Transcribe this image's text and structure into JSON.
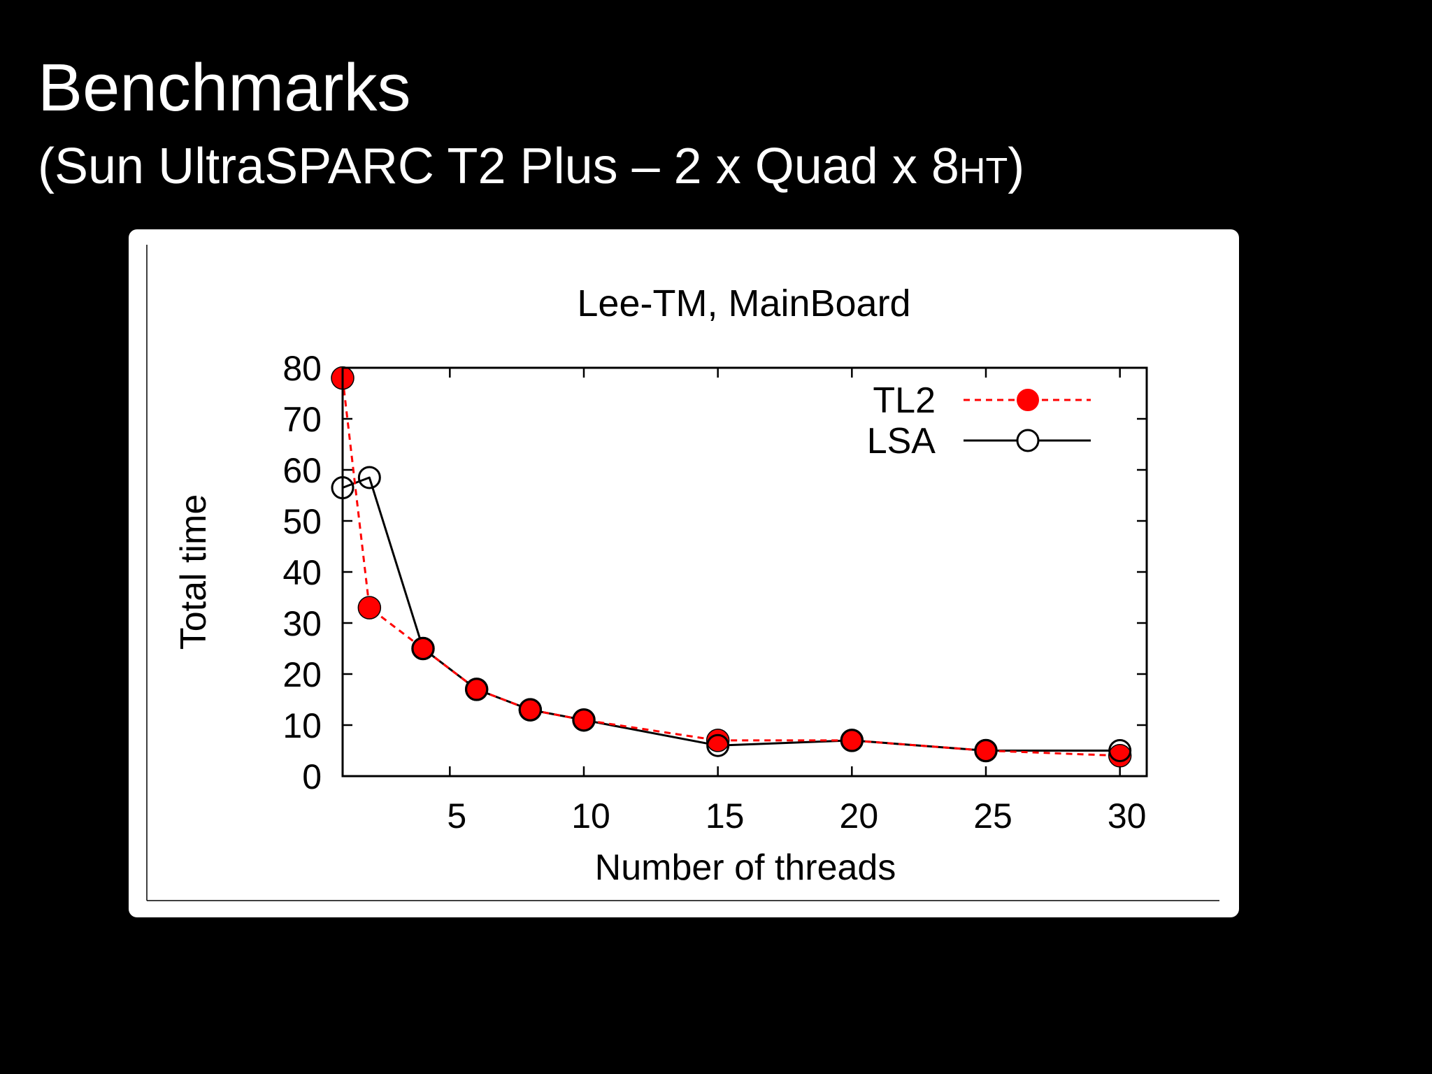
{
  "slide": {
    "title": "Benchmarks",
    "subtitle_main": "(Sun UltraSPARC T2 Plus – 2 x Quad x 8",
    "subtitle_suffix": "HT",
    "subtitle_close": ")"
  },
  "chart_data": {
    "type": "line",
    "title": "Lee-TM, MainBoard",
    "xlabel": "Number of threads",
    "ylabel": "Total time",
    "xlim": [
      0,
      30
    ],
    "ylim": [
      0,
      80
    ],
    "xticks": [
      5,
      10,
      15,
      20,
      25,
      30
    ],
    "yticks": [
      0,
      10,
      20,
      30,
      40,
      50,
      60,
      70,
      80
    ],
    "legend_position": "top-right",
    "grid": false,
    "series": [
      {
        "name": "TL2",
        "color": "#ff0000",
        "line_style": "dashed",
        "marker": "filled-circle",
        "points": [
          [
            0,
            78
          ],
          [
            1,
            33
          ],
          [
            3,
            25
          ],
          [
            5,
            17
          ],
          [
            7,
            13
          ],
          [
            9,
            11
          ],
          [
            14,
            7
          ],
          [
            19,
            7
          ],
          [
            24,
            5
          ],
          [
            29,
            4
          ]
        ]
      },
      {
        "name": "LSA",
        "color": "#000000",
        "line_style": "solid",
        "marker": "open-circle",
        "points": [
          [
            0,
            56.5
          ],
          [
            1,
            58.5
          ],
          [
            3,
            25
          ],
          [
            5,
            17
          ],
          [
            7,
            13
          ],
          [
            9,
            11
          ],
          [
            14,
            6
          ],
          [
            19,
            7
          ],
          [
            24,
            5
          ],
          [
            29,
            5
          ]
        ]
      }
    ]
  }
}
